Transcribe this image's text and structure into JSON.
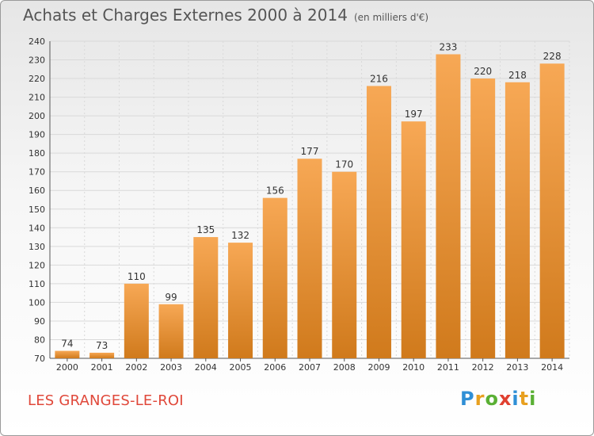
{
  "title": "Achats et Charges Externes 2000 à 2014",
  "unit": "(en milliers d'€)",
  "location": "LES GRANGES-LE-ROI",
  "logo": {
    "letters": [
      "P",
      "r",
      "o",
      "x",
      "i",
      "t",
      "i"
    ],
    "colors": [
      "#2f8fd6",
      "#e8a020",
      "#5ab034",
      "#e04030",
      "#2f8fd6",
      "#e8a020",
      "#5ab034"
    ]
  },
  "colors": {
    "bar_top": "#f7a855",
    "bar_bottom": "#d07a1c",
    "grid": "#d9d9d9"
  },
  "chart_data": {
    "type": "bar",
    "categories": [
      "2000",
      "2001",
      "2002",
      "2003",
      "2004",
      "2005",
      "2006",
      "2007",
      "2008",
      "2009",
      "2010",
      "2011",
      "2012",
      "2013",
      "2014"
    ],
    "values": [
      74,
      73,
      110,
      99,
      135,
      132,
      156,
      177,
      170,
      216,
      197,
      233,
      220,
      218,
      228
    ],
    "ylim": [
      70,
      240
    ],
    "yticks": [
      70,
      80,
      90,
      100,
      110,
      120,
      130,
      140,
      150,
      160,
      170,
      180,
      190,
      200,
      210,
      220,
      230,
      240
    ],
    "grid": true
  }
}
